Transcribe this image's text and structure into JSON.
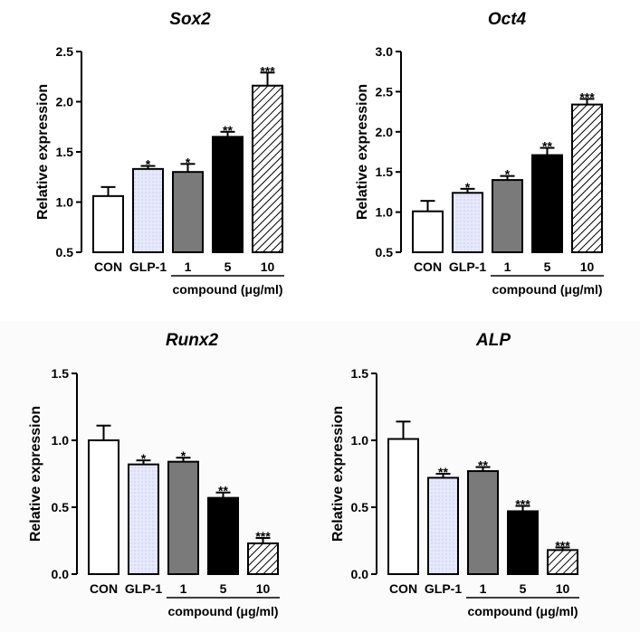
{
  "chart_data": [
    {
      "type": "bar",
      "title": "Sox2",
      "ylabel": "Relative expression",
      "categories": [
        "CON",
        "GLP-1",
        "1",
        "5",
        "10"
      ],
      "group_label": "compound (μg/ml)",
      "values": [
        1.06,
        1.33,
        1.3,
        1.65,
        2.16
      ],
      "errors": [
        0.09,
        0.03,
        0.08,
        0.05,
        0.13
      ],
      "significance": [
        "",
        "*",
        "*",
        "**",
        "***"
      ],
      "ylim": [
        0.5,
        2.5
      ],
      "yticks": [
        "0.5",
        "1.0",
        "1.5",
        "2.0",
        "2.5"
      ]
    },
    {
      "type": "bar",
      "title": "Oct4",
      "ylabel": "Relative expression",
      "categories": [
        "CON",
        "GLP-1",
        "1",
        "5",
        "10"
      ],
      "group_label": "compound (μg/ml)",
      "values": [
        1.01,
        1.24,
        1.4,
        1.71,
        2.34
      ],
      "errors": [
        0.13,
        0.05,
        0.05,
        0.09,
        0.07
      ],
      "significance": [
        "",
        "*",
        "*",
        "**",
        "***"
      ],
      "ylim": [
        0.5,
        3.0
      ],
      "yticks": [
        "0.5",
        "1.0",
        "1.5",
        "2.0",
        "2.5",
        "3.0"
      ]
    },
    {
      "type": "bar",
      "title": "Runx2",
      "ylabel": "Relative expression",
      "categories": [
        "CON",
        "GLP-1",
        "1",
        "5",
        "10"
      ],
      "group_label": "compound (μg/ml)",
      "values": [
        1.0,
        0.82,
        0.84,
        0.57,
        0.23
      ],
      "errors": [
        0.11,
        0.03,
        0.03,
        0.04,
        0.04
      ],
      "significance": [
        "",
        "*",
        "*",
        "**",
        "***"
      ],
      "ylim": [
        0.0,
        1.5
      ],
      "yticks": [
        "0.0",
        "0.5",
        "1.0",
        "1.5"
      ]
    },
    {
      "type": "bar",
      "title": "ALP",
      "ylabel": "Relative expression",
      "categories": [
        "CON",
        "GLP-1",
        "1",
        "5",
        "10"
      ],
      "group_label": "compound (μg/ml)",
      "values": [
        1.01,
        0.72,
        0.77,
        0.47,
        0.18
      ],
      "errors": [
        0.13,
        0.03,
        0.03,
        0.04,
        0.02
      ],
      "significance": [
        "",
        "**",
        "**",
        "***",
        "***"
      ],
      "ylim": [
        0.0,
        1.5
      ],
      "yticks": [
        "0.0",
        "0.5",
        "1.0",
        "1.5"
      ]
    }
  ],
  "colors": {
    "con": "#ffffff",
    "glp1": "#e3e5fa",
    "dose1": "#7a7a7a",
    "dose5": "#000000",
    "dose10_hatch": "#000000"
  }
}
